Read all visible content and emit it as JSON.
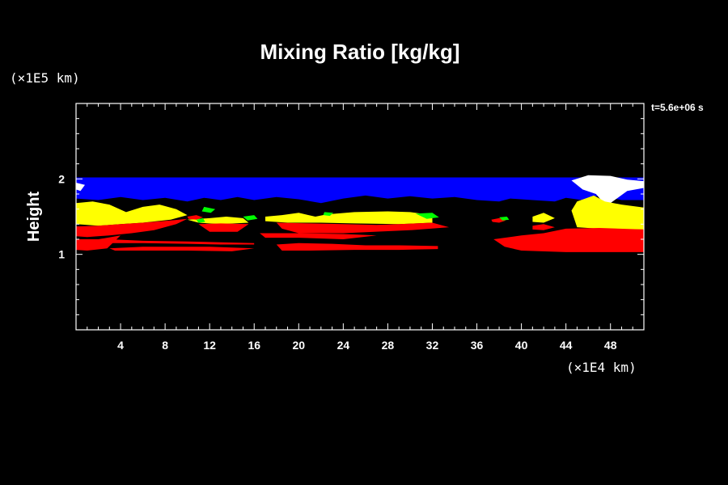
{
  "chart_data": {
    "type": "heatmap",
    "title": "Mixing Ratio [kg/kg]",
    "xlabel": "",
    "ylabel": "Height",
    "x_unit": "(×1E4 km)",
    "y_unit": "(×1E5 km)",
    "time_label": "t=5.6e+06 s",
    "xlim": [
      0,
      51
    ],
    "ylim": [
      0,
      3
    ],
    "x_ticks": [
      4,
      8,
      12,
      16,
      20,
      24,
      28,
      32,
      36,
      40,
      44,
      48
    ],
    "x_tick_labels": [
      "4",
      "8",
      "12",
      "16",
      "20",
      "24",
      "28",
      "32",
      "36",
      "40",
      "44",
      "48"
    ],
    "y_ticks": [
      1,
      2
    ],
    "y_tick_labels": [
      "1",
      "2"
    ],
    "colors": {
      "background": "#000000",
      "frame": "#ffffff",
      "blue": "#0000ff",
      "yellow": "#ffff00",
      "red": "#ff0000",
      "green": "#00ff00",
      "white": "#ffffff"
    },
    "regions": [
      {
        "color": "blue",
        "polygon": [
          [
            0,
            2.02
          ],
          [
            23,
            2.02
          ],
          [
            46,
            2.02
          ],
          [
            51,
            2.02
          ],
          [
            51,
            1.72
          ],
          [
            49,
            1.72
          ],
          [
            47,
            1.78
          ],
          [
            45.5,
            1.72
          ],
          [
            44,
            1.75
          ],
          [
            43,
            1.7
          ],
          [
            41,
            1.72
          ],
          [
            39,
            1.74
          ],
          [
            38,
            1.7
          ],
          [
            36,
            1.72
          ],
          [
            34,
            1.76
          ],
          [
            32,
            1.74
          ],
          [
            30,
            1.77
          ],
          [
            28,
            1.74
          ],
          [
            26,
            1.78
          ],
          [
            24,
            1.74
          ],
          [
            22,
            1.68
          ],
          [
            20,
            1.73
          ],
          [
            18,
            1.76
          ],
          [
            16,
            1.72
          ],
          [
            14.5,
            1.76
          ],
          [
            13,
            1.72
          ],
          [
            11.5,
            1.75
          ],
          [
            10,
            1.7
          ],
          [
            8,
            1.75
          ],
          [
            6,
            1.72
          ],
          [
            4,
            1.76
          ],
          [
            2,
            1.72
          ],
          [
            0,
            1.74
          ]
        ]
      },
      {
        "color": "white",
        "polygon": [
          [
            44.5,
            1.98
          ],
          [
            46,
            2.05
          ],
          [
            48,
            2.04
          ],
          [
            49.5,
            1.99
          ],
          [
            51,
            1.97
          ],
          [
            51,
            1.88
          ],
          [
            49.5,
            1.84
          ],
          [
            48,
            1.68
          ],
          [
            47.5,
            1.66
          ],
          [
            46.7,
            1.8
          ],
          [
            45.5,
            1.86
          ]
        ]
      },
      {
        "color": "white",
        "polygon": [
          [
            0,
            1.95
          ],
          [
            0.8,
            1.92
          ],
          [
            0.4,
            1.84
          ],
          [
            0,
            1.86
          ]
        ]
      },
      {
        "color": "yellow",
        "polygon": [
          [
            0,
            1.68
          ],
          [
            1.5,
            1.7
          ],
          [
            3,
            1.66
          ],
          [
            4.5,
            1.56
          ],
          [
            6,
            1.63
          ],
          [
            7.5,
            1.66
          ],
          [
            9,
            1.6
          ],
          [
            10,
            1.52
          ],
          [
            8.5,
            1.46
          ],
          [
            6,
            1.42
          ],
          [
            4,
            1.4
          ],
          [
            2,
            1.38
          ],
          [
            0,
            1.4
          ]
        ]
      },
      {
        "color": "yellow",
        "polygon": [
          [
            10,
            1.46
          ],
          [
            12,
            1.48
          ],
          [
            13.5,
            1.5
          ],
          [
            15,
            1.48
          ],
          [
            15.5,
            1.42
          ],
          [
            13,
            1.4
          ],
          [
            11,
            1.42
          ]
        ]
      },
      {
        "color": "yellow",
        "polygon": [
          [
            17,
            1.5
          ],
          [
            18.5,
            1.52
          ],
          [
            20,
            1.55
          ],
          [
            21.5,
            1.5
          ],
          [
            22.5,
            1.53
          ],
          [
            25,
            1.56
          ],
          [
            28,
            1.57
          ],
          [
            30,
            1.56
          ],
          [
            32,
            1.52
          ],
          [
            32,
            1.42
          ],
          [
            29,
            1.4
          ],
          [
            25,
            1.41
          ],
          [
            22,
            1.42
          ],
          [
            19,
            1.42
          ],
          [
            17,
            1.44
          ]
        ]
      },
      {
        "color": "yellow",
        "polygon": [
          [
            41,
            1.5
          ],
          [
            42,
            1.55
          ],
          [
            43,
            1.48
          ],
          [
            42,
            1.42
          ],
          [
            41,
            1.43
          ]
        ]
      },
      {
        "color": "yellow",
        "polygon": [
          [
            44.5,
            1.58
          ],
          [
            45,
            1.7
          ],
          [
            46.5,
            1.78
          ],
          [
            47.5,
            1.7
          ],
          [
            49,
            1.66
          ],
          [
            51,
            1.62
          ],
          [
            51,
            1.33
          ],
          [
            48,
            1.33
          ],
          [
            45,
            1.36
          ]
        ]
      },
      {
        "color": "red",
        "polygon": [
          [
            0,
            1.37
          ],
          [
            2,
            1.38
          ],
          [
            4,
            1.4
          ],
          [
            6,
            1.42
          ],
          [
            8.5,
            1.45
          ],
          [
            10,
            1.47
          ],
          [
            9,
            1.4
          ],
          [
            7,
            1.32
          ],
          [
            5,
            1.28
          ],
          [
            3,
            1.25
          ],
          [
            1,
            1.23
          ],
          [
            0,
            1.24
          ]
        ]
      },
      {
        "color": "red",
        "polygon": [
          [
            0,
            1.2
          ],
          [
            3,
            1.2
          ],
          [
            6,
            1.18
          ],
          [
            10,
            1.17
          ],
          [
            13,
            1.16
          ],
          [
            16,
            1.15
          ],
          [
            16,
            1.13
          ],
          [
            13,
            1.13
          ],
          [
            10,
            1.14
          ],
          [
            6,
            1.15
          ],
          [
            3,
            1.15
          ],
          [
            0,
            1.14
          ]
        ]
      },
      {
        "color": "red",
        "polygon": [
          [
            0,
            1.15
          ],
          [
            2,
            1.2
          ],
          [
            4,
            1.25
          ],
          [
            2.8,
            1.08
          ],
          [
            1,
            1.05
          ],
          [
            0,
            1.06
          ]
        ]
      },
      {
        "color": "red",
        "polygon": [
          [
            11,
            1.4
          ],
          [
            13,
            1.41
          ],
          [
            15.5,
            1.4
          ],
          [
            14.5,
            1.3
          ],
          [
            12,
            1.3
          ]
        ]
      },
      {
        "color": "red",
        "polygon": [
          [
            18,
            1.42
          ],
          [
            21,
            1.41
          ],
          [
            24,
            1.4
          ],
          [
            27,
            1.39
          ],
          [
            29,
            1.4
          ],
          [
            32,
            1.42
          ],
          [
            33.5,
            1.36
          ],
          [
            30,
            1.32
          ],
          [
            24,
            1.28
          ],
          [
            20,
            1.28
          ],
          [
            18.5,
            1.34
          ]
        ]
      },
      {
        "color": "red",
        "polygon": [
          [
            16.5,
            1.28
          ],
          [
            20,
            1.28
          ],
          [
            24,
            1.27
          ],
          [
            27,
            1.25
          ],
          [
            24,
            1.2
          ],
          [
            20,
            1.22
          ],
          [
            17,
            1.22
          ]
        ]
      },
      {
        "color": "red",
        "polygon": [
          [
            18,
            1.13
          ],
          [
            20,
            1.15
          ],
          [
            23,
            1.14
          ],
          [
            26,
            1.12
          ],
          [
            29,
            1.12
          ],
          [
            32.5,
            1.11
          ],
          [
            32.5,
            1.07
          ],
          [
            29,
            1.06
          ],
          [
            25,
            1.06
          ],
          [
            21,
            1.05
          ],
          [
            18.5,
            1.05
          ]
        ]
      },
      {
        "color": "red",
        "polygon": [
          [
            3,
            1.08
          ],
          [
            6,
            1.1
          ],
          [
            9,
            1.1
          ],
          [
            12,
            1.1
          ],
          [
            16,
            1.08
          ],
          [
            14,
            1.04
          ],
          [
            10,
            1.05
          ],
          [
            6,
            1.05
          ],
          [
            3.5,
            1.05
          ]
        ]
      },
      {
        "color": "red",
        "polygon": [
          [
            37.5,
            1.2
          ],
          [
            40,
            1.25
          ],
          [
            42,
            1.28
          ],
          [
            44,
            1.34
          ],
          [
            47,
            1.35
          ],
          [
            51,
            1.33
          ],
          [
            51,
            1.03
          ],
          [
            47,
            1.03
          ],
          [
            44,
            1.03
          ],
          [
            40,
            1.05
          ],
          [
            38.5,
            1.1
          ]
        ]
      },
      {
        "color": "red",
        "polygon": [
          [
            41,
            1.38
          ],
          [
            42,
            1.4
          ],
          [
            43,
            1.36
          ],
          [
            42,
            1.32
          ],
          [
            41,
            1.33
          ]
        ]
      },
      {
        "color": "red",
        "polygon": [
          [
            37.3,
            1.46
          ],
          [
            38,
            1.48
          ],
          [
            38.6,
            1.45
          ],
          [
            38,
            1.42
          ],
          [
            37.4,
            1.43
          ]
        ]
      },
      {
        "color": "red",
        "polygon": [
          [
            10,
            1.5
          ],
          [
            10.8,
            1.52
          ],
          [
            11.4,
            1.49
          ],
          [
            10.8,
            1.46
          ],
          [
            10.1,
            1.47
          ]
        ]
      },
      {
        "color": "green",
        "polygon": [
          [
            11.5,
            1.63
          ],
          [
            12.5,
            1.6
          ],
          [
            12.1,
            1.55
          ],
          [
            11.3,
            1.57
          ]
        ]
      },
      {
        "color": "green",
        "polygon": [
          [
            15,
            1.5
          ],
          [
            16,
            1.52
          ],
          [
            16.3,
            1.47
          ],
          [
            15.4,
            1.45
          ]
        ]
      },
      {
        "color": "green",
        "polygon": [
          [
            30.5,
            1.54
          ],
          [
            32,
            1.55
          ],
          [
            32.6,
            1.49
          ],
          [
            31.5,
            1.47
          ]
        ]
      },
      {
        "color": "green",
        "polygon": [
          [
            22.3,
            1.56
          ],
          [
            23.1,
            1.55
          ],
          [
            22.8,
            1.51
          ],
          [
            22.2,
            1.52
          ]
        ]
      },
      {
        "color": "green",
        "polygon": [
          [
            10.8,
            1.46
          ],
          [
            11.4,
            1.48
          ],
          [
            11.6,
            1.43
          ],
          [
            11,
            1.42
          ]
        ]
      },
      {
        "color": "green",
        "polygon": [
          [
            38,
            1.49
          ],
          [
            38.7,
            1.5
          ],
          [
            38.9,
            1.46
          ],
          [
            38.3,
            1.45
          ]
        ]
      }
    ]
  }
}
